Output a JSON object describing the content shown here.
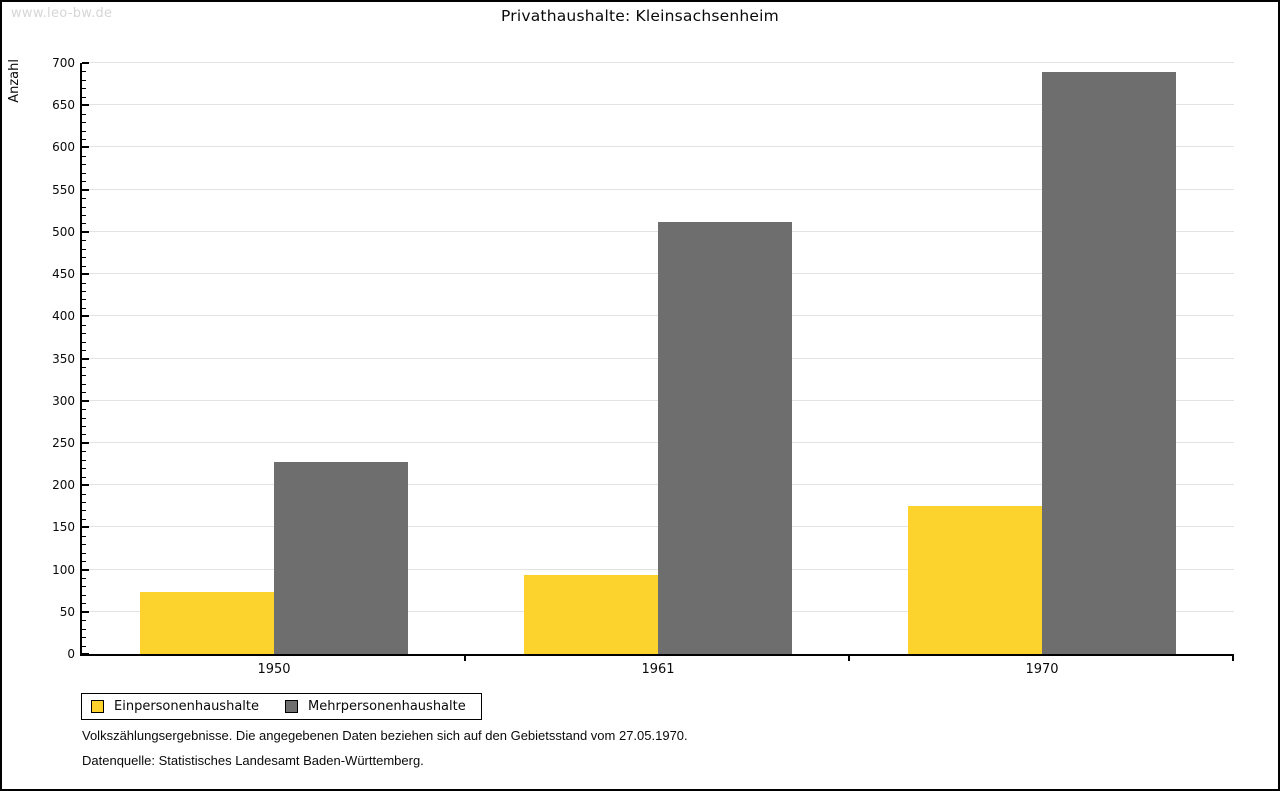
{
  "watermark": "www.leo-bw.de",
  "title": "Privathaushalte: Kleinsachsenheim",
  "colors": {
    "einpersonenhaushalte": "#FCD32D",
    "mehrpersonenhaushalte": "#6E6E6E",
    "gridline": "#E3E3E3",
    "axis": "#000000",
    "watermark": "#D6D6D6"
  },
  "chart_data": {
    "type": "bar",
    "title": "Privathaushalte: Kleinsachsenheim",
    "categories": [
      "1950",
      "1961",
      "1970"
    ],
    "series": [
      {
        "name": "Einpersonenhaushalte",
        "color": "#FCD32D",
        "values": [
          73,
          94,
          175
        ]
      },
      {
        "name": "Mehrpersonenhaushalte",
        "color": "#6E6E6E",
        "values": [
          227,
          512,
          689
        ]
      }
    ],
    "xlabel": "",
    "ylabel": "Anzahl",
    "ylim": [
      0,
      700
    ],
    "yticks": [
      0,
      50,
      100,
      150,
      200,
      250,
      300,
      350,
      400,
      450,
      500,
      550,
      600,
      650,
      700
    ],
    "ytick_step": 50,
    "minor_tick_step": 10,
    "grid": true,
    "legend_position": "bottom-left"
  },
  "legend": {
    "items": [
      {
        "label": "Einpersonenhaushalte",
        "color": "#FCD32D"
      },
      {
        "label": "Mehrpersonenhaushalte",
        "color": "#6E6E6E"
      }
    ]
  },
  "footnotes": {
    "line1": "Volkszählungsergebnisse. Die angegebenen Daten beziehen sich auf den Gebietsstand vom 27.05.1970.",
    "line2": "Datenquelle: Statistisches Landesamt Baden-Württemberg."
  }
}
